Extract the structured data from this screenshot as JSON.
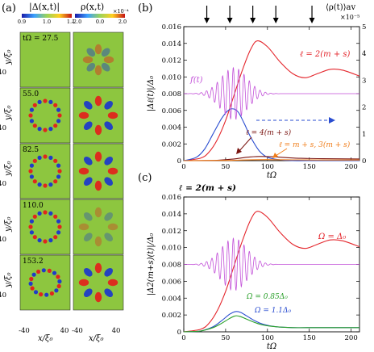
{
  "panel_a": {
    "label": "(a)",
    "col1_header": "|Δ(x,t)|",
    "col2_header": "ρ(x,t)",
    "colorbar1": {
      "ticks": [
        "0.9",
        "1.0",
        "1.1"
      ]
    },
    "colorbar2": {
      "ticks": [
        "-2.0",
        "0.0",
        "2.0"
      ],
      "exponent": "×10⁻⁴"
    },
    "rows": [
      {
        "time_label": "tΩ = 27.5",
        "shape": "faint"
      },
      {
        "time_label": "55.0",
        "shape": "ring"
      },
      {
        "time_label": "82.5",
        "shape": "ring"
      },
      {
        "time_label": "110.0",
        "shape": "ring"
      },
      {
        "time_label": "153.2",
        "shape": "tilted"
      }
    ],
    "y_axis_label": "y/ξ₀",
    "x_axis_label": "x/ξ₀",
    "axis_tick_values": [
      "-40",
      "40"
    ]
  },
  "panel_b": {
    "label": "(b)",
    "right_axis_label": "⟨ρ(t)⟩av",
    "right_exponent": "×10⁻⁵",
    "arrow_marks": [
      27.5,
      55.0,
      82.5,
      110.0,
      153.2
    ],
    "annotations": {
      "l2": "ℓ = 2(m + s)",
      "l4": "ℓ = 4(m + s)",
      "l13": "ℓ = m + s, 3(m + s)",
      "ft": "f(t)"
    }
  },
  "panel_c": {
    "label": "(c)",
    "header": "ℓ = 2(m + s)",
    "annotations": {
      "red": "Ω = Δ₀",
      "green": "Ω = 0.85Δ₀",
      "blue": "Ω = 1.1Δ₀"
    }
  },
  "chart_data": [
    {
      "type": "line",
      "panel": "b",
      "xlabel": "tΩ",
      "ylabel": "|Δℓ(t)|/Δ₀",
      "xlim": [
        0,
        210
      ],
      "ylim": [
        0,
        0.016
      ],
      "right_ylim": [
        0,
        5
      ],
      "x_ticks": [
        0,
        50,
        100,
        150,
        200
      ],
      "y_ticks": [
        0,
        0.002,
        0.004,
        0.006,
        0.008,
        0.01,
        0.012,
        0.014,
        0.016
      ],
      "y_tick_labels": [
        "0",
        "0.002",
        "0.004",
        "0.006",
        "0.008",
        "0.010",
        "0.012",
        "0.014",
        "0.016"
      ],
      "right_ticks": [
        0,
        1,
        2,
        3,
        4,
        5
      ],
      "series": [
        {
          "color": "#e4262c",
          "x": [
            0,
            20,
            30,
            40,
            50,
            60,
            70,
            80,
            88,
            100,
            115,
            130,
            145,
            160,
            175,
            190,
            210
          ],
          "y": [
            0,
            0.0003,
            0.001,
            0.0025,
            0.0048,
            0.0078,
            0.0108,
            0.0133,
            0.0143,
            0.0136,
            0.0118,
            0.0104,
            0.0099,
            0.0104,
            0.0109,
            0.0108,
            0.0101
          ]
        },
        {
          "color": "#2a4dd0",
          "x": [
            0,
            15,
            25,
            35,
            45,
            52,
            58,
            65,
            72,
            80,
            90,
            100,
            115,
            130,
            150,
            210
          ],
          "y": [
            0,
            0.0004,
            0.0014,
            0.0032,
            0.005,
            0.0059,
            0.0062,
            0.0058,
            0.0045,
            0.0028,
            0.0012,
            0.0004,
            0.0001,
            0,
            0,
            0
          ]
        },
        {
          "color": "#7a1410",
          "x": [
            0,
            40,
            60,
            75,
            90,
            105,
            120,
            140,
            160,
            180,
            210
          ],
          "y": [
            0,
            5e-05,
            0.0002,
            0.0004,
            0.0005,
            0.00047,
            0.00038,
            0.00028,
            0.00024,
            0.00022,
            0.0002
          ]
        },
        {
          "color": "#f07d1a",
          "x": [
            0,
            50,
            70,
            90,
            110,
            130,
            150,
            180,
            210
          ],
          "y": [
            0,
            3e-05,
            8e-05,
            0.00012,
            0.00012,
            0.0001,
            9e-05,
            8e-05,
            8e-05
          ]
        },
        {
          "color": "#c24fd8",
          "kind": "pulse",
          "center": 60,
          "width": 22,
          "period": 6.4,
          "baseline": 0.008,
          "amplitude": 0.0031,
          "x_range": [
            0,
            210
          ]
        }
      ]
    },
    {
      "type": "line",
      "panel": "c",
      "xlabel": "tΩ",
      "ylabel": "|Δ2(m+s)(t)|/Δ₀",
      "xlim": [
        0,
        210
      ],
      "ylim": [
        0,
        0.016
      ],
      "x_ticks": [
        0,
        50,
        100,
        150,
        200
      ],
      "y_ticks": [
        0,
        0.002,
        0.004,
        0.006,
        0.008,
        0.01,
        0.012,
        0.014,
        0.016
      ],
      "y_tick_labels": [
        "0",
        "0.002",
        "0.004",
        "0.006",
        "0.008",
        "0.010",
        "0.012",
        "0.014",
        "0.016"
      ],
      "series": [
        {
          "color": "#e4262c",
          "x": [
            0,
            20,
            30,
            40,
            50,
            60,
            70,
            80,
            88,
            100,
            115,
            130,
            145,
            160,
            175,
            190,
            210
          ],
          "y": [
            0,
            0.0003,
            0.001,
            0.0025,
            0.0048,
            0.0078,
            0.0108,
            0.0133,
            0.0143,
            0.0136,
            0.0118,
            0.0104,
            0.0099,
            0.0104,
            0.0109,
            0.0108,
            0.0101
          ]
        },
        {
          "color": "#2a4dd0",
          "x": [
            0,
            20,
            35,
            45,
            55,
            62,
            68,
            75,
            85,
            95,
            110,
            130,
            160,
            210
          ],
          "y": [
            0,
            0.0001,
            0.0006,
            0.0013,
            0.0021,
            0.0024,
            0.0023,
            0.0019,
            0.0013,
            0.0009,
            0.0006,
            0.0005,
            0.0005,
            0.0005
          ]
        },
        {
          "color": "#2aa02a",
          "x": [
            0,
            20,
            35,
            45,
            55,
            62,
            68,
            75,
            85,
            95,
            110,
            130,
            160,
            210
          ],
          "y": [
            0,
            0.0001,
            0.0005,
            0.001,
            0.0016,
            0.0019,
            0.0018,
            0.0015,
            0.0011,
            0.0008,
            0.0006,
            0.0005,
            0.0005,
            0.0005
          ]
        },
        {
          "color": "#c24fd8",
          "kind": "pulse",
          "center": 60,
          "width": 22,
          "period": 6.4,
          "baseline": 0.008,
          "amplitude": 0.0031,
          "x_range": [
            0,
            210
          ]
        }
      ]
    }
  ]
}
